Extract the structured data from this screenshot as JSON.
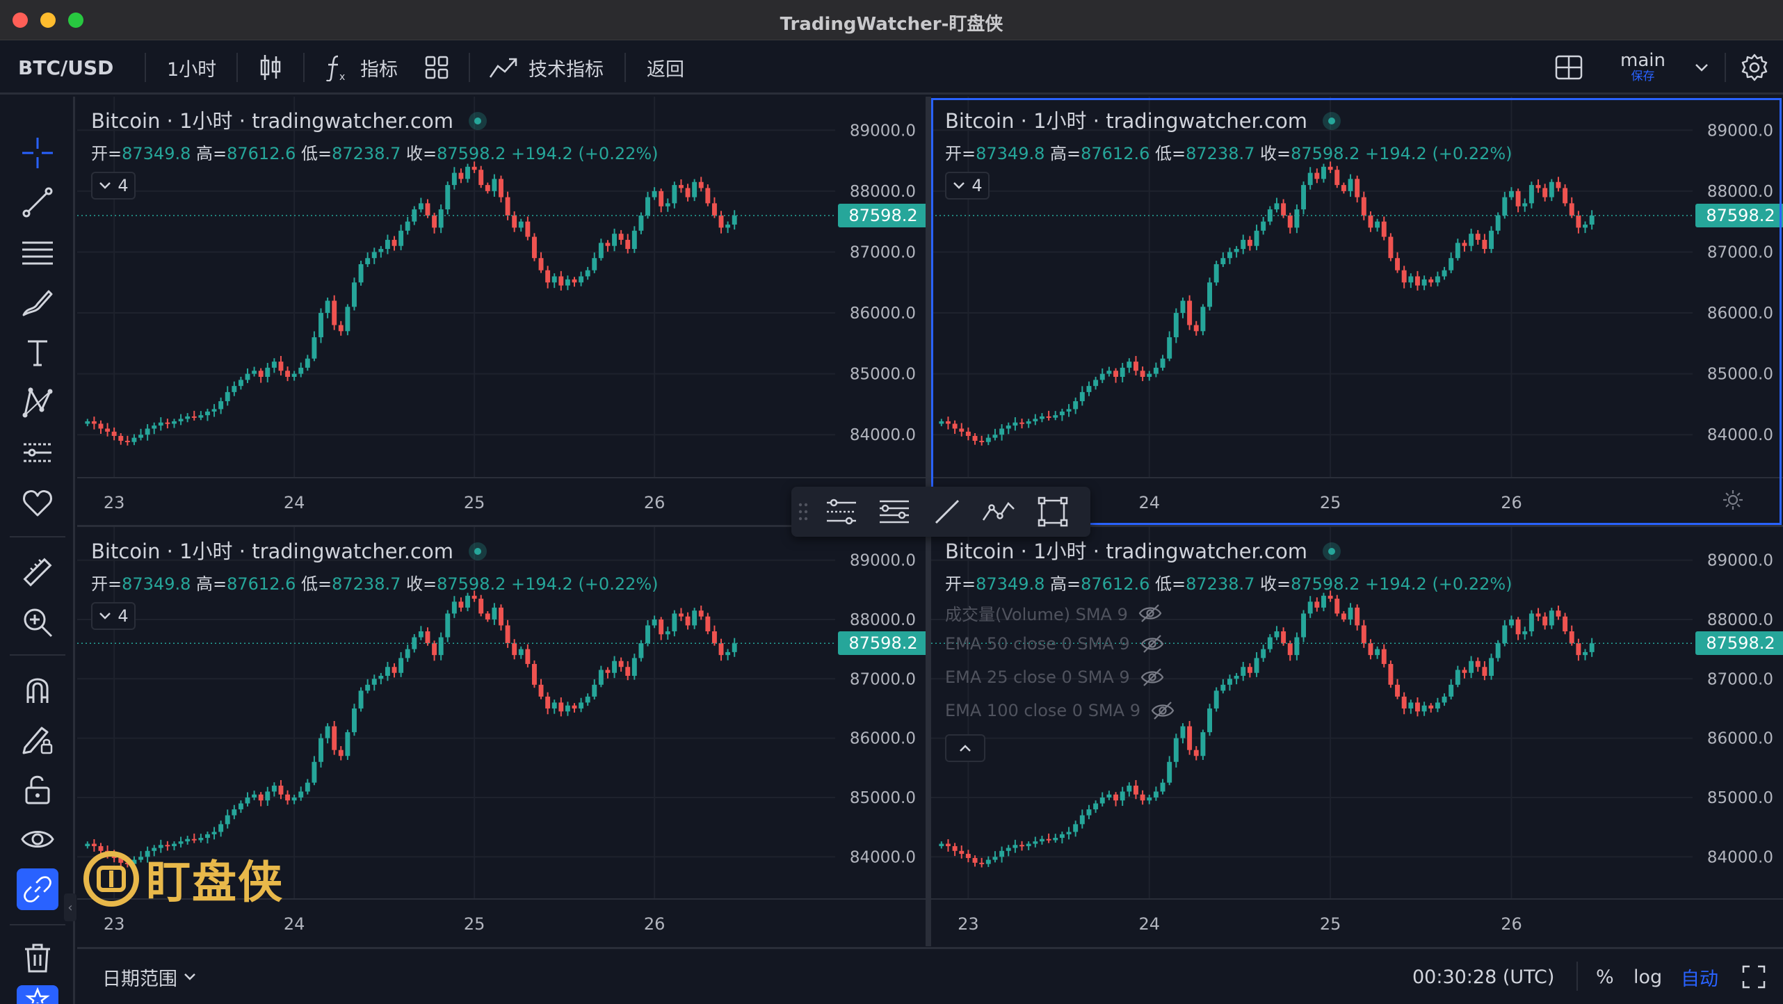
{
  "window": {
    "title": "TradingWatcher-盯盘侠"
  },
  "toolbar": {
    "symbol": "BTC/USD",
    "interval": "1小时",
    "indicators_label": "指标",
    "tech_indicators_label": "技术指标",
    "back_label": "返回",
    "layout_name": "main",
    "save_label": "保存"
  },
  "legend": {
    "title": "Bitcoin · 1小时 · tradingwatcher.com",
    "open_label": "开=",
    "open": "87349.8",
    "high_label": "高=",
    "high": "87612.6",
    "low_label": "低=",
    "low": "87238.7",
    "close_label": "收=",
    "close": "87598.2",
    "change": "+194.2 (+0.22%)",
    "collapse_count": "4"
  },
  "indicators": [
    {
      "label": "成交量(Volume) SMA 9",
      "icon": "eye-off-icon"
    },
    {
      "label": "EMA 50 close 0 SMA 9",
      "icon": "eye-off-icon"
    },
    {
      "label": "EMA 25 close 0 SMA 9",
      "icon": "eye-off-icon"
    },
    {
      "label": "EMA 100 close 0 SMA 9",
      "icon": "eye-off-icon"
    }
  ],
  "price_axis": [
    "89000.0",
    "88000.0",
    "87000.0",
    "86000.0",
    "85000.0",
    "84000.0"
  ],
  "time_axis": [
    "23",
    "24",
    "25",
    "26"
  ],
  "last_price": "87598.2",
  "bottombar": {
    "date_range_label": "日期范围",
    "clock": "00:30:28 (UTC)",
    "percent_label": "%",
    "log_label": "log",
    "auto_label": "自动"
  },
  "watermark": {
    "text": "盯盘侠"
  },
  "colors": {
    "up": "#26a69a",
    "down": "#ef5350",
    "accent": "#2962ff",
    "background": "#131722"
  },
  "chart_data": {
    "type": "candlestick",
    "ylim": [
      83500,
      89300
    ],
    "x_ticks": [
      "23",
      "24",
      "25",
      "26"
    ],
    "y_ticks": [
      89000,
      88000,
      87000,
      86000,
      85000,
      84000
    ],
    "last_price": 87598.2,
    "closes": [
      84220,
      84180,
      84100,
      84050,
      83980,
      83900,
      83880,
      83950,
      84000,
      84100,
      84150,
      84200,
      84180,
      84220,
      84260,
      84300,
      84280,
      84320,
      84380,
      84420,
      84550,
      84700,
      84800,
      84900,
      85000,
      85050,
      84950,
      85100,
      85200,
      85050,
      84950,
      85000,
      85100,
      85250,
      85600,
      86000,
      86200,
      85800,
      85700,
      86100,
      86500,
      86800,
      86900,
      87000,
      87050,
      87200,
      87100,
      87350,
      87500,
      87700,
      87800,
      87600,
      87400,
      87700,
      88100,
      88300,
      88200,
      88400,
      88350,
      88100,
      88000,
      88200,
      87900,
      87600,
      87400,
      87500,
      87250,
      86900,
      86700,
      86500,
      86600,
      86450,
      86550,
      86500,
      86600,
      86700,
      86900,
      87150,
      87100,
      87300,
      87200,
      87050,
      87350,
      87600,
      87900,
      88000,
      87750,
      87800,
      88100,
      88050,
      87900,
      88150,
      88050,
      87800,
      87600,
      87400,
      87450,
      87598
    ]
  }
}
